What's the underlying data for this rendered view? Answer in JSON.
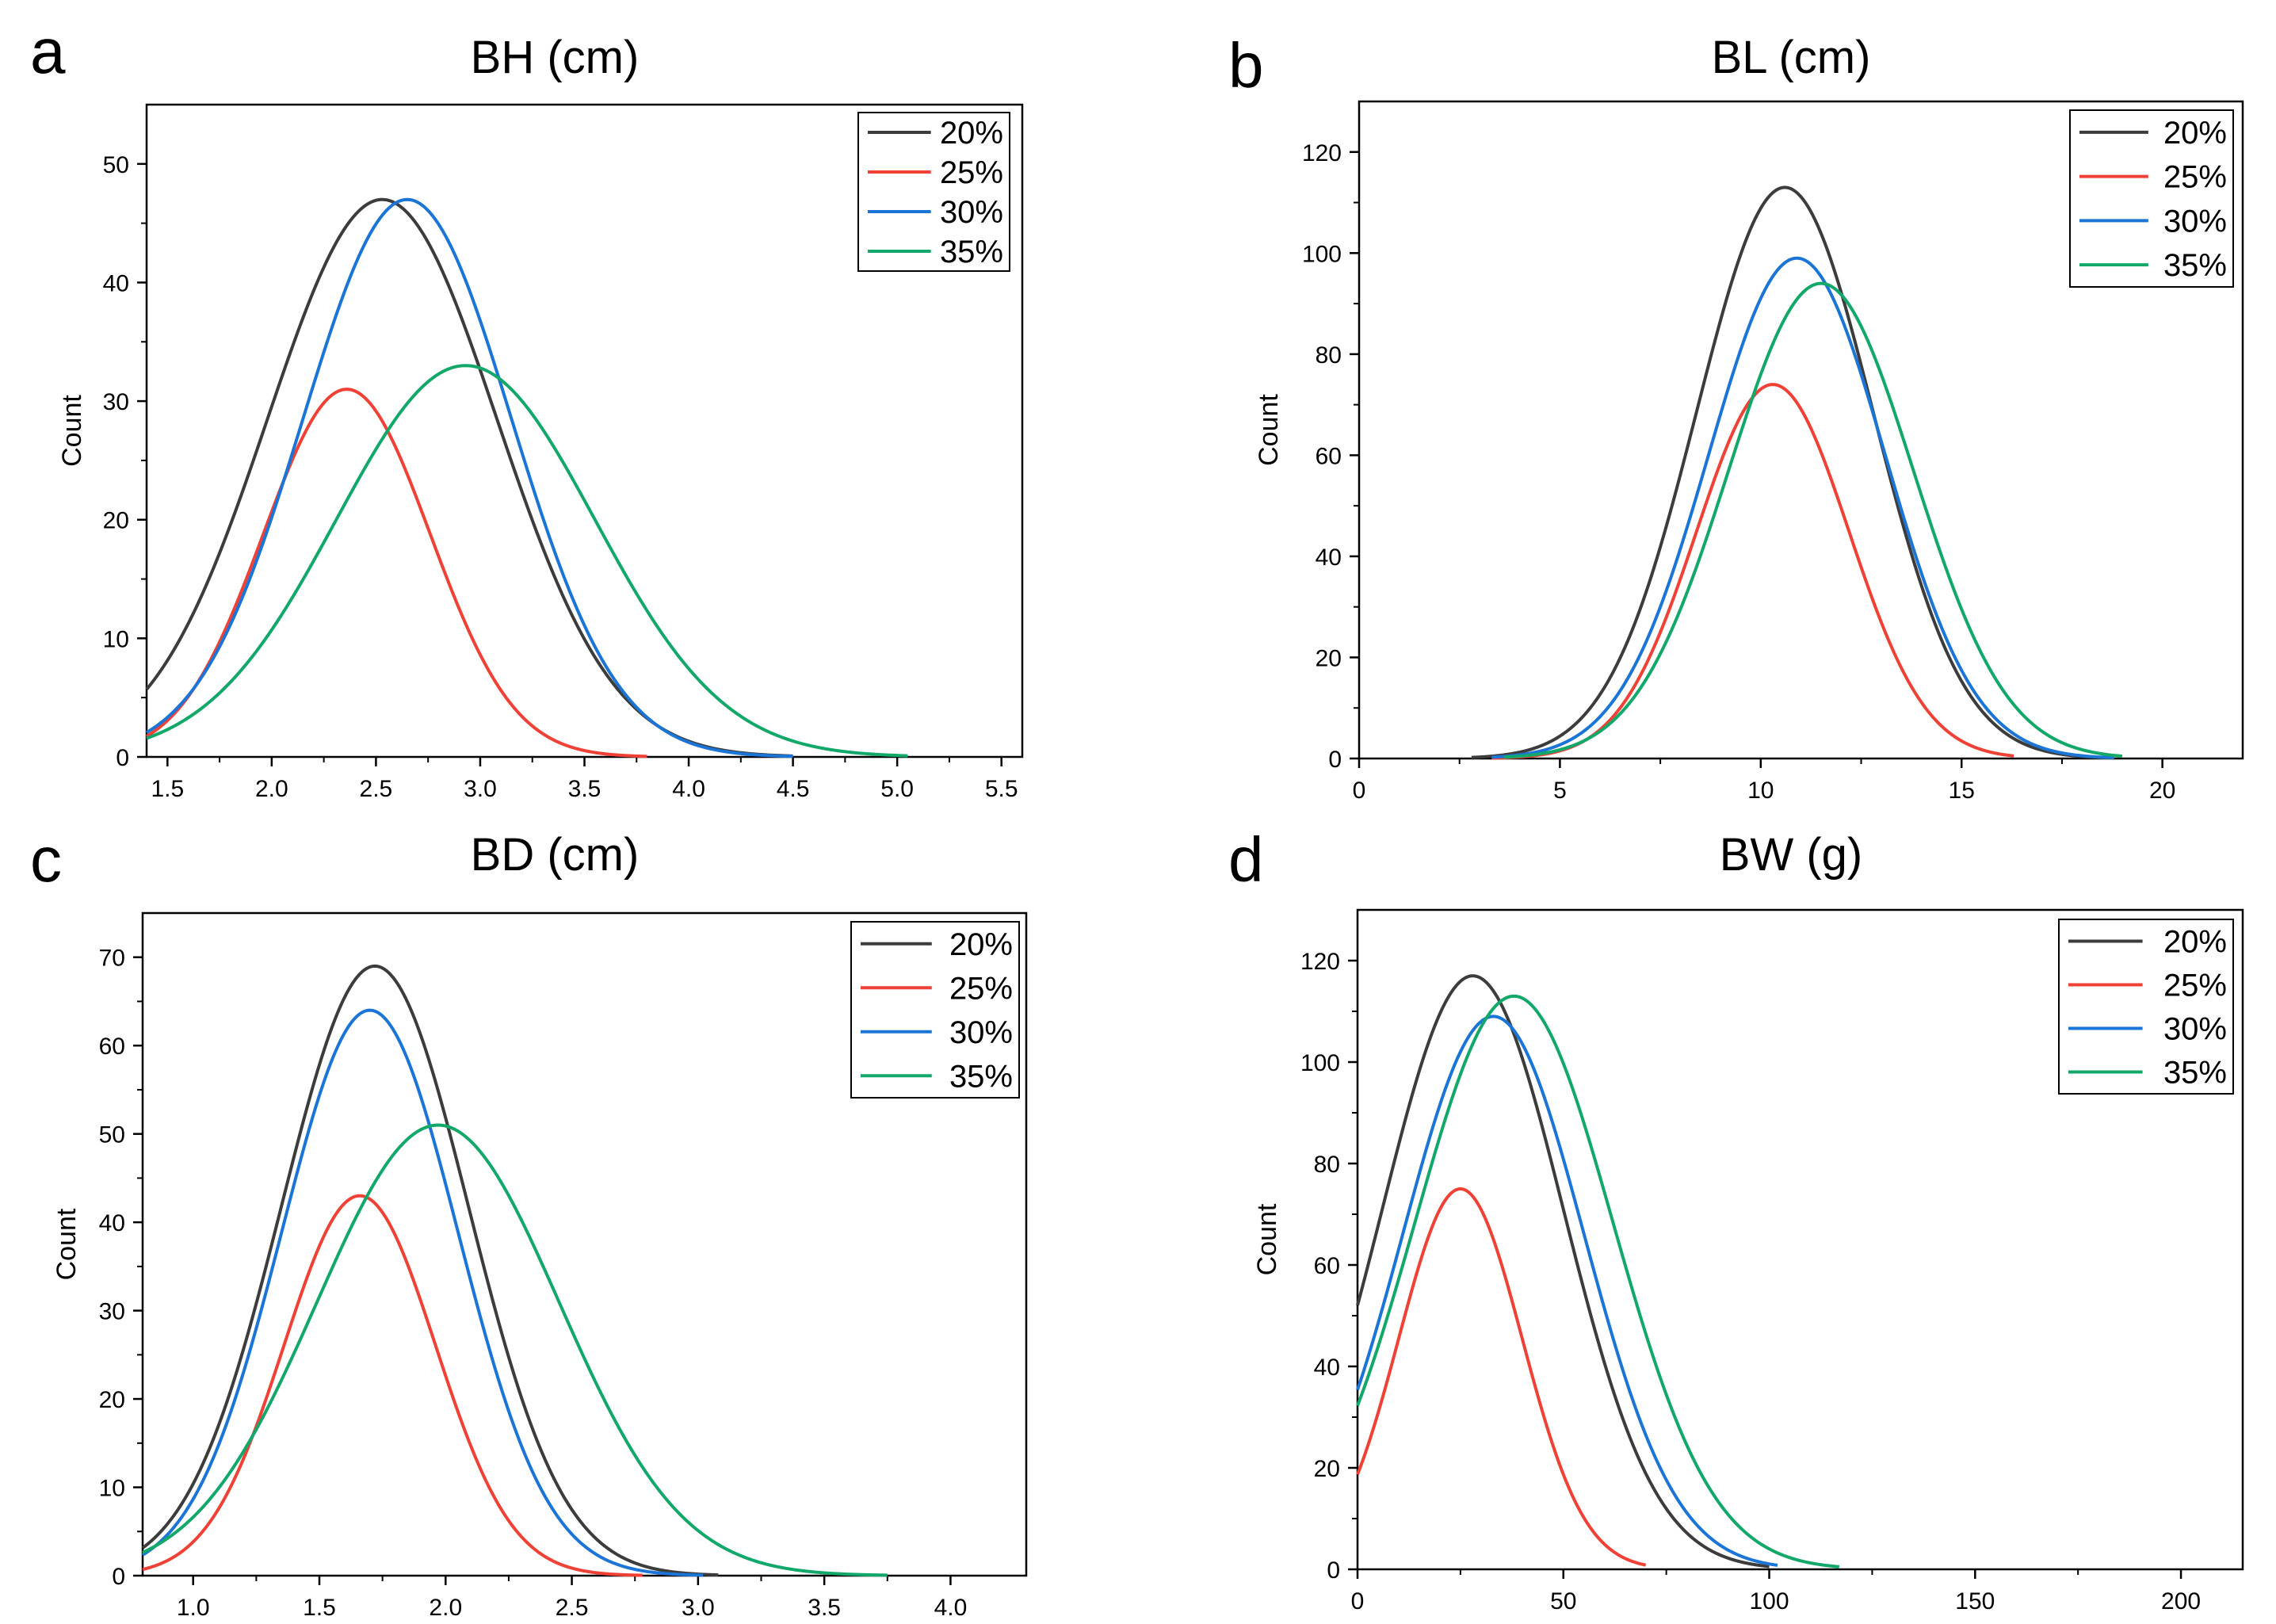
{
  "colors": {
    "20%": "#3c3c3c",
    "25%": "#ef4136",
    "30%": "#1b75d6",
    "35%": "#12a86a"
  },
  "chart_data": [
    {
      "panel_label": "a",
      "type": "line",
      "title": "BH (cm)",
      "xlabel": "",
      "ylabel": "Count",
      "xlim": [
        1.4,
        5.6
      ],
      "ylim": [
        0,
        55
      ],
      "xticks": [
        "1.5",
        "2.0",
        "2.5",
        "3.0",
        "3.5",
        "4.0",
        "4.5",
        "5.0",
        "5.5"
      ],
      "yticks": [
        "0",
        "10",
        "20",
        "30",
        "40",
        "50"
      ],
      "legend_position": "top-right",
      "series": [
        {
          "name": "20%",
          "peak_x": 2.53,
          "peak_y": 47,
          "sd": 0.55,
          "x_start": 1.4,
          "x_end": 4.5
        },
        {
          "name": "25%",
          "peak_x": 2.36,
          "peak_y": 31,
          "sd": 0.4,
          "x_start": 1.4,
          "x_end": 3.8
        },
        {
          "name": "30%",
          "peak_x": 2.65,
          "peak_y": 47,
          "sd": 0.5,
          "x_start": 1.4,
          "x_end": 4.5
        },
        {
          "name": "35%",
          "peak_x": 2.93,
          "peak_y": 33,
          "sd": 0.62,
          "x_start": 1.4,
          "x_end": 5.05
        }
      ]
    },
    {
      "panel_label": "b",
      "type": "line",
      "title": "BL (cm)",
      "xlabel": "",
      "ylabel": "Count",
      "xlim": [
        0,
        22
      ],
      "ylim": [
        0,
        130
      ],
      "xticks": [
        "0",
        "5",
        "10",
        "15",
        "20"
      ],
      "yticks": [
        "0",
        "20",
        "40",
        "60",
        "80",
        "100",
        "120"
      ],
      "legend_position": "top-right",
      "series": [
        {
          "name": "20%",
          "peak_x": 10.6,
          "peak_y": 113,
          "sd": 2.2,
          "x_start": 2.8,
          "x_end": 18.8
        },
        {
          "name": "25%",
          "peak_x": 10.3,
          "peak_y": 74,
          "sd": 1.9,
          "x_start": 3.3,
          "x_end": 16.3
        },
        {
          "name": "30%",
          "peak_x": 10.9,
          "peak_y": 99,
          "sd": 2.2,
          "x_start": 3.3,
          "x_end": 18.8
        },
        {
          "name": "35%",
          "peak_x": 11.5,
          "peak_y": 94,
          "sd": 2.3,
          "x_start": 3.6,
          "x_end": 19.0
        }
      ]
    },
    {
      "panel_label": "c",
      "type": "line",
      "title": "BD (cm)",
      "xlabel": "",
      "ylabel": "Count",
      "xlim": [
        0.8,
        4.3
      ],
      "ylim": [
        0,
        75
      ],
      "xticks": [
        "1.0",
        "1.5",
        "2.0",
        "2.5",
        "3.0",
        "3.5",
        "4.0"
      ],
      "yticks": [
        "0",
        "10",
        "20",
        "30",
        "40",
        "50",
        "60",
        "70"
      ],
      "legend_position": "top-right",
      "series": [
        {
          "name": "20%",
          "peak_x": 1.72,
          "peak_y": 69,
          "sd": 0.37,
          "x_start": 0.8,
          "x_end": 3.08
        },
        {
          "name": "25%",
          "peak_x": 1.66,
          "peak_y": 43,
          "sd": 0.3,
          "x_start": 0.8,
          "x_end": 2.78
        },
        {
          "name": "30%",
          "peak_x": 1.7,
          "peak_y": 64,
          "sd": 0.35,
          "x_start": 0.8,
          "x_end": 3.02
        },
        {
          "name": "35%",
          "peak_x": 1.97,
          "peak_y": 51,
          "sd": 0.48,
          "x_start": 0.8,
          "x_end": 3.75
        }
      ]
    },
    {
      "panel_label": "d",
      "type": "line",
      "title": "BW (g)",
      "xlabel": "",
      "ylabel": "Count",
      "xlim": [
        0,
        215
      ],
      "ylim": [
        0,
        130
      ],
      "xticks": [
        "0",
        "50",
        "100",
        "150",
        "200"
      ],
      "yticks": [
        "0",
        "20",
        "40",
        "60",
        "80",
        "100",
        "120"
      ],
      "legend_position": "top-right",
      "series": [
        {
          "name": "20%",
          "peak_x": 28,
          "peak_y": 117,
          "sd": 22,
          "x_start": 0,
          "x_end": 100
        },
        {
          "name": "25%",
          "peak_x": 25,
          "peak_y": 75,
          "sd": 15,
          "x_start": 0,
          "x_end": 70
        },
        {
          "name": "30%",
          "peak_x": 33,
          "peak_y": 109,
          "sd": 22,
          "x_start": 0,
          "x_end": 102
        },
        {
          "name": "35%",
          "peak_x": 38,
          "peak_y": 113,
          "sd": 24,
          "x_start": 0,
          "x_end": 117
        }
      ]
    }
  ]
}
